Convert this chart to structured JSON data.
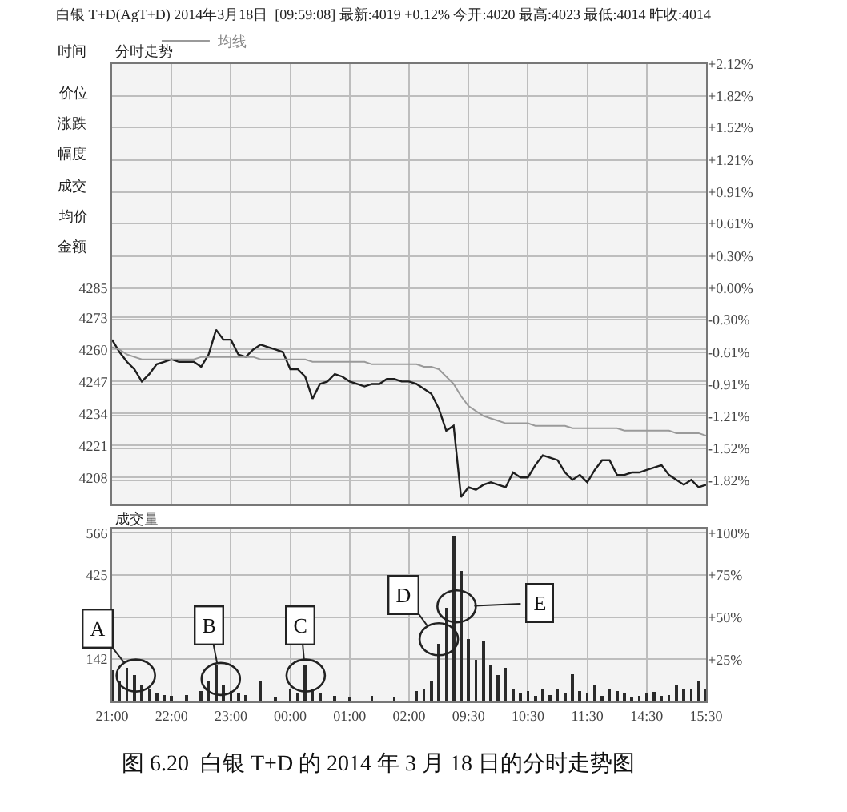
{
  "chart_data": [
    {
      "type": "line",
      "title": "白银 T+D(AgT+D) 2014年3月18日  [09:59:08] 最新:4019 +0.12% 今开:4020 最高:4023 最低:4014 昨收:4014",
      "subtitle": "分时走势",
      "categories": [
        null,
        null,
        null,
        null,
        null,
        null,
        null,
        null,
        null,
        null,
        null,
        null,
        null,
        null,
        null,
        null,
        null,
        null,
        null,
        null,
        null,
        null,
        null,
        null,
        null,
        null,
        null,
        null,
        null,
        null,
        null,
        null,
        null,
        null,
        null,
        null,
        null,
        null,
        null,
        null,
        null,
        null,
        null,
        null,
        null,
        null,
        null,
        null,
        null,
        null,
        null,
        null,
        null,
        null,
        null,
        null,
        null,
        null,
        null,
        null,
        null,
        null,
        null,
        null,
        null,
        null,
        null,
        null,
        null,
        null,
        null,
        null,
        null,
        null,
        null,
        null,
        null,
        null,
        null,
        null,
        null
      ],
      "ylim": [
        4197,
        4376
      ],
      "yticks": [
        4208,
        4221,
        4234,
        4247,
        4260,
        4273,
        4285
      ],
      "y2lim": [
        -2.05,
        2.12
      ],
      "y2ticks": [
        {
          "value": -1.82,
          "label": "-1.82%"
        },
        {
          "value": -1.52,
          "label": "-1.52%"
        },
        {
          "value": -1.21,
          "label": "-1.21%"
        },
        {
          "value": -0.91,
          "label": "-0.91%"
        },
        {
          "value": -0.61,
          "label": "-0.61%"
        },
        {
          "value": -0.3,
          "label": "-0.30%"
        },
        {
          "value": 0,
          "label": "+0.00%"
        },
        {
          "value": 0.3,
          "label": "+0.30%"
        },
        {
          "value": 0.61,
          "label": "+0.61%"
        },
        {
          "value": 0.91,
          "label": "+0.91%"
        },
        {
          "value": 1.21,
          "label": "+1.21%"
        },
        {
          "value": 1.52,
          "label": "+1.52%"
        },
        {
          "value": 1.82,
          "label": "+1.82%"
        },
        {
          "value": 2.12,
          "label": "+2.12%"
        }
      ],
      "tick_labels": "y",
      "grid": true,
      "legend": "top left",
      "annotations": [
        "时间",
        "价位",
        "涨跌",
        "幅度",
        "成交",
        "均价",
        "金额"
      ],
      "series": [
        {
          "color": "#1e1e1e",
          "values": [
            4264,
            4259,
            4255,
            4252,
            4247,
            4250,
            4254,
            4255,
            4256,
            4255,
            4255,
            4255,
            4253,
            4258,
            4268,
            4264,
            4264,
            4258,
            4257,
            4260,
            4262,
            4261,
            4260,
            4259,
            4252,
            4252,
            4249,
            4240,
            4246,
            4247,
            4250,
            4249,
            4247,
            4246,
            4245,
            4246,
            4246,
            4248,
            4248,
            4247,
            4247,
            4246,
            4244,
            4242,
            4236,
            4227,
            4229,
            4200,
            4204,
            4203,
            4205,
            4206,
            4205,
            4204,
            4210,
            4208,
            4208,
            4213,
            4217,
            4216,
            4215,
            4210,
            4207,
            4209,
            4206,
            4211,
            4215,
            4215,
            4209,
            4209,
            4210,
            4210,
            4211,
            4212,
            4213,
            4209,
            4207,
            4205,
            4207,
            4204,
            4205
          ]
        },
        {
          "name": "均线",
          "color": "#9a9a9a",
          "values": [
            4261,
            4260,
            4258,
            4257,
            4256,
            4256,
            4256,
            4256,
            4256,
            4256,
            4256,
            4256,
            4257,
            4257,
            4257,
            4257,
            4257,
            4257,
            4257,
            4257,
            4256,
            4256,
            4256,
            4256,
            4256,
            4256,
            4256,
            4255,
            4255,
            4255,
            4255,
            4255,
            4255,
            4255,
            4255,
            4254,
            4254,
            4254,
            4254,
            4254,
            4254,
            4254,
            4253,
            4253,
            4252,
            4249,
            4246,
            4241,
            4237,
            4235,
            4233,
            4232,
            4231,
            4230,
            4230,
            4230,
            4230,
            4229,
            4229,
            4229,
            4229,
            4229,
            4228,
            4228,
            4228,
            4228,
            4228,
            4228,
            4228,
            4227,
            4227,
            4227,
            4227,
            4227,
            4227,
            4227,
            4226,
            4226,
            4226,
            4226,
            4225
          ]
        }
      ]
    },
    {
      "type": "bar",
      "title": "成交量",
      "color": "#2a2a2a",
      "categories": [
        "21:00",
        null,
        null,
        null,
        null,
        null,
        null,
        null,
        "22:00",
        null,
        null,
        null,
        null,
        null,
        null,
        null,
        "23:00",
        null,
        null,
        null,
        null,
        null,
        null,
        null,
        "00:00",
        null,
        null,
        null,
        null,
        null,
        null,
        null,
        "01:00",
        null,
        null,
        null,
        null,
        null,
        null,
        null,
        "02:00",
        null,
        null,
        null,
        null,
        null,
        null,
        null,
        "09:30",
        null,
        null,
        null,
        null,
        null,
        null,
        null,
        "10:30",
        null,
        null,
        null,
        null,
        null,
        null,
        null,
        "11:30",
        null,
        null,
        null,
        null,
        null,
        null,
        null,
        "14:30",
        null,
        null,
        null,
        null,
        null,
        null,
        null,
        "15:30"
      ],
      "values": [
        105,
        70,
        114,
        88,
        53,
        44,
        26,
        21,
        18,
        null,
        21,
        null,
        35,
        70,
        123,
        53,
        35,
        26,
        21,
        null,
        70,
        null,
        14,
        null,
        44,
        26,
        123,
        44,
        26,
        null,
        18,
        null,
        14,
        null,
        null,
        18,
        null,
        null,
        14,
        null,
        null,
        35,
        44,
        70,
        193,
        315,
        557,
        438,
        210,
        140,
        201,
        123,
        88,
        114,
        44,
        26,
        35,
        18,
        44,
        21,
        39,
        26,
        91,
        35,
        26,
        53,
        18,
        44,
        35,
        26,
        14,
        18,
        26,
        32,
        18,
        21,
        56,
        44,
        44,
        70,
        40
      ],
      "ylim": [
        0,
        580
      ],
      "yticks": [
        142,
        425,
        566
      ],
      "y2lim": [
        0,
        102.5
      ],
      "y2ticks": [
        {
          "value": 25,
          "label": "+25%"
        },
        {
          "value": 50,
          "label": "+50%"
        },
        {
          "value": 75,
          "label": "+75%"
        },
        {
          "value": 100,
          "label": "+100%"
        }
      ],
      "grid": true,
      "annotations": [
        "A",
        "B",
        "C",
        "D",
        "E",
        "图 6.20  白银 T+D 的 2014 年 3 月 18 日的分时走势图"
      ]
    }
  ]
}
